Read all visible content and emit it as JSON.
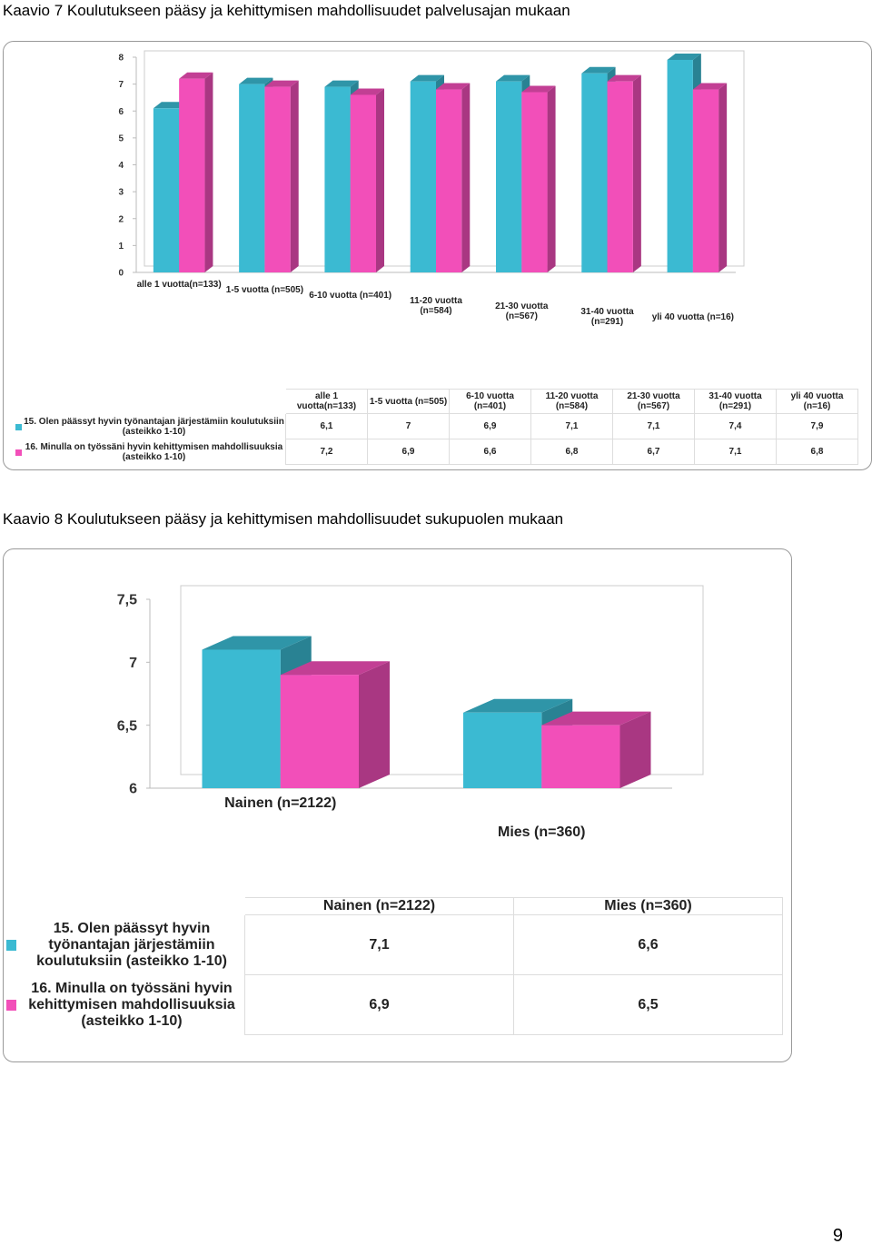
{
  "chart_data": [
    {
      "type": "bar",
      "title": "Kaavio 7 Koulutukseen pääsy ja kehittymisen mahdollisuudet palvelusajan mukaan",
      "categories": [
        "alle 1 vuotta(n=133)",
        "1-5 vuotta (n=505)",
        "6-10 vuotta (n=401)",
        "11-20 vuotta (n=584)",
        "21-30 vuotta (n=567)",
        "31-40 vuotta (n=291)",
        "yli 40 vuotta (n=16)"
      ],
      "series": [
        {
          "name": "15. Olen päässyt hyvin työnantajan järjestämiin koulutuksiin (asteikko 1-10)",
          "color": "#3bbad2",
          "values": [
            6.1,
            7,
            6.9,
            7.1,
            7.1,
            7.4,
            7.9
          ],
          "value_labels": [
            "6,1",
            "7",
            "6,9",
            "7,1",
            "7,1",
            "7,4",
            "7,9"
          ]
        },
        {
          "name": "16. Minulla on työssäni hyvin kehittymisen mahdollisuuksia (asteikko 1-10)",
          "color": "#f24fb9",
          "values": [
            7.2,
            6.9,
            6.6,
            6.8,
            6.7,
            7.1,
            6.8
          ],
          "value_labels": [
            "7,2",
            "6,9",
            "6,6",
            "6,8",
            "6,7",
            "7,1",
            "6,8"
          ]
        }
      ],
      "ylim": [
        0,
        8
      ],
      "yticks": [
        0,
        1,
        2,
        3,
        4,
        5,
        6,
        7,
        8
      ]
    },
    {
      "type": "bar",
      "title": "Kaavio 8 Koulutukseen pääsy ja kehittymisen mahdollisuudet sukupuolen mukaan",
      "categories": [
        "Nainen (n=2122)",
        "Mies (n=360)"
      ],
      "series": [
        {
          "name": "15. Olen päässyt hyvin työnantajan järjestämiin koulutuksiin (asteikko 1-10)",
          "color": "#3bbad2",
          "values": [
            7.1,
            6.6
          ],
          "value_labels": [
            "7,1",
            "6,6"
          ]
        },
        {
          "name": "16. Minulla on työssäni hyvin kehittymisen mahdollisuuksia (asteikko 1-10)",
          "color": "#f24fb9",
          "values": [
            6.9,
            6.5
          ],
          "value_labels": [
            "6,9",
            "6,5"
          ]
        }
      ],
      "ylim": [
        6,
        7.5
      ],
      "yticks": [
        6,
        {
          "value": 6.5,
          "label": "6,5"
        },
        7,
        {
          "value": 7.5,
          "label": "7,5"
        }
      ]
    }
  ],
  "page_number": "9"
}
